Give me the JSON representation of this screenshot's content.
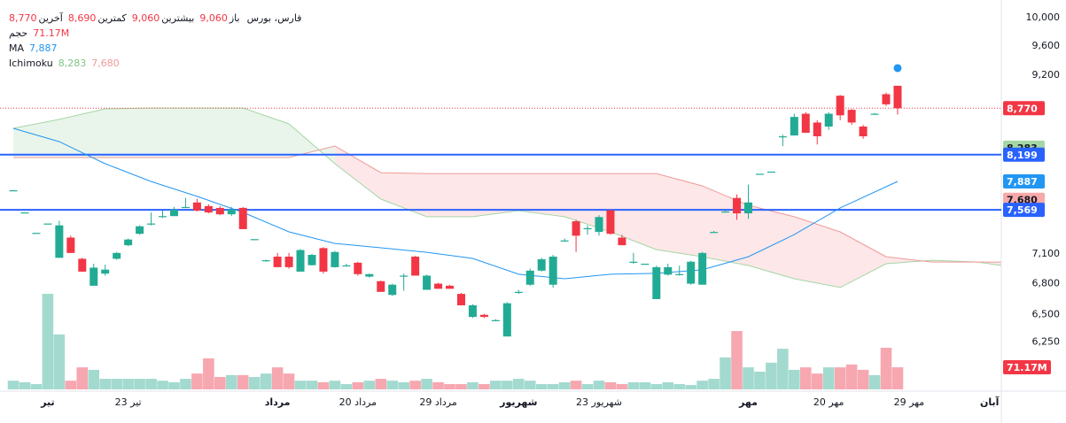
{
  "chart_data": {
    "type": "candlestick",
    "legend": {
      "symbol": "فارس، بورس",
      "fields": [
        {
          "label": "باز",
          "value": "9,060"
        },
        {
          "label": "بیشترین",
          "value": "9,060"
        },
        {
          "label": "کمترین",
          "value": "8,690"
        },
        {
          "label": "آخرین",
          "value": "8,770"
        }
      ],
      "volume": {
        "label": "حجم",
        "value": "71.17M"
      },
      "ma": {
        "label": "MA",
        "value": "7,887"
      },
      "ichimoku": {
        "label": "Ichimoku",
        "values": [
          "8,283",
          "7,680"
        ]
      }
    },
    "open": [
      7786,
      7540,
      7320,
      7420,
      7060,
      7270,
      7050,
      6780,
      6900,
      7050,
      7190,
      7310,
      7420,
      7500,
      7500,
      7600,
      7650,
      7610,
      7590,
      7520,
      7590,
      7254,
      7035,
      7072,
      7072,
      6920,
      6985,
      7160,
      6965,
      6983,
      7010,
      6870,
      6825,
      6690,
      6880,
      7072,
      6740,
      6800,
      6780,
      6700,
      6480,
      6500,
      6450,
      6299,
      6720,
      6790,
      6930,
      6790,
      7240,
      7444,
      7370,
      7330,
      7563,
      7270,
      7020,
      7000,
      6650,
      6890,
      6895,
      6800,
      6790,
      7330,
      7550,
      7700,
      7530,
      7975,
      8000,
      8420,
      8430,
      8700,
      8590,
      8540,
      8930,
      8750,
      8540,
      8700,
      8950,
      9060
    ],
    "high": [
      7786,
      7540,
      7320,
      7420,
      7450,
      7290,
      7060,
      7000,
      6990,
      7120,
      7260,
      7400,
      7540,
      7560,
      7600,
      7700,
      7690,
      7630,
      7610,
      7600,
      7600,
      7254,
      7040,
      7110,
      7110,
      7150,
      7100,
      7170,
      7130,
      7000,
      7020,
      6900,
      6830,
      6800,
      6900,
      7080,
      6890,
      6810,
      6790,
      6710,
      6600,
      6510,
      6460,
      6620,
      6740,
      6950,
      7060,
      7090,
      7260,
      7460,
      7400,
      7510,
      7570,
      7300,
      7110,
      7000,
      6980,
      7000,
      6980,
      7030,
      7120,
      7340,
      7560,
      7740,
      7850,
      7975,
      8000,
      8440,
      8700,
      8720,
      8620,
      8720,
      8940,
      8760,
      8560,
      8710,
      8970,
      9060
    ],
    "low": [
      7786,
      7540,
      7320,
      7420,
      7060,
      7110,
      6920,
      6780,
      6880,
      7040,
      7180,
      7300,
      7400,
      7480,
      7500,
      7590,
      7550,
      7530,
      7510,
      7500,
      7360,
      7254,
      7020,
      6965,
      6950,
      6920,
      6980,
      6900,
      6960,
      6970,
      6880,
      6860,
      6720,
      6680,
      6730,
      6880,
      6740,
      6750,
      6750,
      6590,
      6470,
      6470,
      6440,
      6299,
      6700,
      6780,
      6920,
      6760,
      7230,
      7120,
      7300,
      7290,
      7300,
      7190,
      7000,
      7000,
      6650,
      6880,
      6880,
      6790,
      6790,
      7320,
      7540,
      7460,
      7470,
      7975,
      8000,
      8300,
      8430,
      8463,
      8320,
      8500,
      8620,
      8560,
      8390,
      8690,
      8800,
      8690
    ],
    "close": [
      7786,
      7540,
      7320,
      7420,
      7400,
      7110,
      6920,
      6960,
      6940,
      7110,
      7250,
      7390,
      7420,
      7500,
      7570,
      7600,
      7560,
      7540,
      7520,
      7570,
      7360,
      7254,
      7035,
      6965,
      6965,
      7140,
      7090,
      6920,
      7120,
      6983,
      6895,
      6895,
      6720,
      6790,
      6880,
      6880,
      6880,
      6750,
      6750,
      6590,
      6590,
      6480,
      6450,
      6610,
      6720,
      6930,
      7045,
      7072,
      7240,
      7290,
      7370,
      7490,
      7310,
      7190,
      7020,
      7000,
      6965,
      6965,
      6895,
      7020,
      7110,
      7330,
      7550,
      7530,
      7650,
      7975,
      8000,
      8420,
      8660,
      8463,
      8420,
      8700,
      8680,
      8590,
      8420,
      8700,
      8820,
      8770
    ],
    "volume": [
      28,
      23,
      17,
      308,
      177,
      28,
      71,
      63,
      34,
      34,
      34,
      34,
      34,
      28,
      23,
      34,
      51,
      100,
      40,
      46,
      46,
      40,
      51,
      71,
      51,
      28,
      28,
      23,
      28,
      17,
      23,
      28,
      34,
      28,
      23,
      28,
      34,
      23,
      17,
      17,
      23,
      17,
      28,
      28,
      34,
      28,
      17,
      17,
      23,
      28,
      17,
      28,
      23,
      17,
      23,
      23,
      17,
      23,
      17,
      14,
      28,
      34,
      103,
      188,
      71,
      57,
      86,
      131,
      63,
      71,
      51,
      71,
      71,
      80,
      63,
      46,
      134,
      71.17
    ],
    "volume_label": "71.17M",
    "ma": {
      "x": [
        0,
        4,
        8,
        12,
        16,
        20,
        24,
        28,
        32,
        36,
        40,
        44,
        48,
        52,
        56,
        60,
        64,
        68,
        72,
        77
      ],
      "values": [
        8518,
        8355,
        8092,
        7886,
        7718,
        7541,
        7331,
        7209,
        7163,
        7117,
        7054,
        6894,
        6849,
        6894,
        6903,
        6938,
        7071,
        7302,
        7590,
        7887
      ]
    },
    "span_a": {
      "x": [
        0,
        4,
        8,
        12,
        16,
        20,
        24,
        28,
        32,
        36,
        40,
        44,
        48,
        52,
        56,
        60,
        64,
        68,
        72,
        76,
        80,
        84,
        86
      ],
      "values": [
        8518,
        8629,
        8762,
        8773,
        8773,
        8773,
        8573,
        8092,
        7687,
        7493,
        7493,
        7560,
        7493,
        7331,
        7144,
        7071,
        6982,
        6849,
        6762,
        7000,
        7035,
        7017,
        6982
      ]
    },
    "span_b": {
      "x": [
        0,
        4,
        8,
        12,
        16,
        20,
        24,
        28,
        32,
        36,
        40,
        44,
        48,
        52,
        56,
        60,
        64,
        68,
        72,
        76,
        80,
        84,
        86
      ],
      "values": [
        8165,
        8165,
        8165,
        8165,
        8165,
        8165,
        8165,
        8302,
        7988,
        7978,
        7978,
        7978,
        7978,
        7978,
        7978,
        7836,
        7619,
        7493,
        7331,
        7071,
        7017,
        7017,
        7017
      ]
    },
    "hlines": [
      8199,
      7569
    ],
    "last_price": 8770,
    "event_marker": {
      "x": 77,
      "value": 9295
    },
    "price_labels": [
      {
        "value": 8770,
        "label": "8,770",
        "color": "#f23645",
        "text_color": "#ffffff"
      },
      {
        "value": 8283,
        "label": "8,283",
        "color": "#a5d6a7",
        "text_color": "#131722"
      },
      {
        "value": 8199,
        "label": "8,199",
        "color": "#2962ff",
        "text_color": "#ffffff"
      },
      {
        "value": 7887,
        "label": "7,887",
        "color": "#2196f3",
        "text_color": "#ffffff"
      },
      {
        "value": 7680,
        "label": "7,680",
        "color": "#f7a9a9",
        "text_color": "#131722"
      },
      {
        "value": 7569,
        "label": "7,569",
        "color": "#2962ff",
        "text_color": "#ffffff"
      }
    ],
    "log_scale": true,
    "ylim": [
      5834,
      10155
    ],
    "yticks": [
      {
        "value": 10000,
        "label": "10,000"
      },
      {
        "value": 9600,
        "label": "9,600"
      },
      {
        "value": 9200,
        "label": "9,200"
      },
      {
        "value": 7100,
        "label": "7,100"
      },
      {
        "value": 6800,
        "label": "6,800"
      },
      {
        "value": 6500,
        "label": "6,500"
      },
      {
        "value": 6250,
        "label": "6,250"
      }
    ],
    "xlim": [
      -1.16,
      86.03
    ],
    "xticks": [
      {
        "value": 3,
        "label": "تیر",
        "bold": true
      },
      {
        "value": 10,
        "label": "23 تیر",
        "bold": false
      },
      {
        "value": 23,
        "label": "مرداد",
        "bold": true
      },
      {
        "value": 30,
        "label": "20 مرداد",
        "bold": false
      },
      {
        "value": 37,
        "label": "29 مرداد",
        "bold": false
      },
      {
        "value": 44,
        "label": "شهریور",
        "bold": true
      },
      {
        "value": 51,
        "label": "23 شهریور",
        "bold": false
      },
      {
        "value": 64,
        "label": "مهر",
        "bold": true
      },
      {
        "value": 71,
        "label": "20 مهر",
        "bold": false
      },
      {
        "value": 78,
        "label": "29 مهر",
        "bold": false
      },
      {
        "value": 85,
        "label": "آبان",
        "bold": true
      }
    ],
    "colors": {
      "up": "#22ab94",
      "down": "#f23645",
      "volume_up": "#a3dacf",
      "volume_down": "#f7a7b0",
      "ma": "#2196f3",
      "span_a": "#a5d6a7",
      "span_b": "#ef9a9a",
      "cloud_up": "rgba(76,175,80,0.12)",
      "cloud_down": "rgba(242,54,69,0.12)",
      "hline": "#2962ff",
      "last_price": "#f23645",
      "event": "#2196f3"
    }
  }
}
